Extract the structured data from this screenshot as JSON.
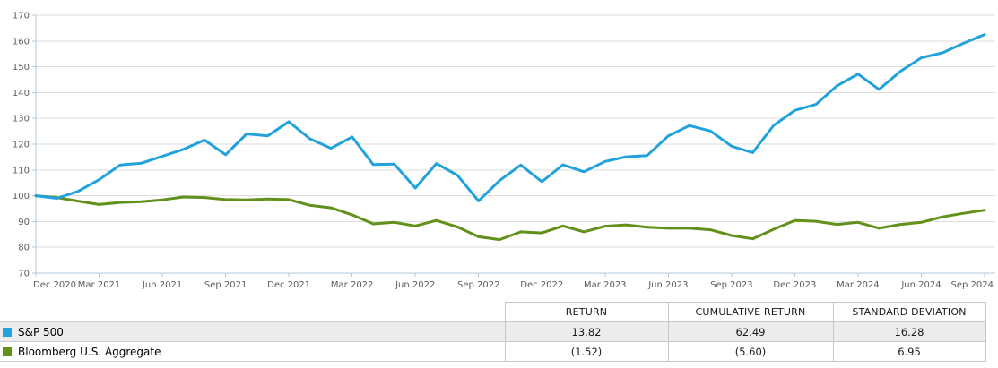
{
  "colors": {
    "grid": "#dddddd",
    "axis": "#b0c9dd",
    "table_border": "#c6c6c6",
    "alt_row_bg": "#ececec",
    "tick_text": "#5c5c5c"
  },
  "chart_data": {
    "type": "line",
    "title": "",
    "xlabel": "",
    "ylabel": "",
    "ylim": [
      70,
      170
    ],
    "y_ticks": [
      70,
      80,
      90,
      100,
      110,
      120,
      130,
      140,
      150,
      160,
      170
    ],
    "grid": "horizontal only",
    "legend_position": "table below chart",
    "x_tick_labels": [
      "Dec 2020",
      "Mar 2021",
      "Jun 2021",
      "Sep 2021",
      "Dec 2021",
      "Mar 2022",
      "Jun 2022",
      "Sep 2022",
      "Dec 2022",
      "Mar 2023",
      "Jun 2023",
      "Sep 2023",
      "Dec 2023",
      "Mar 2024",
      "Jun 2024",
      "Sep 2024"
    ],
    "x": [
      "Dec 2020",
      "Jan 2021",
      "Feb 2021",
      "Mar 2021",
      "Apr 2021",
      "May 2021",
      "Jun 2021",
      "Jul 2021",
      "Aug 2021",
      "Sep 2021",
      "Oct 2021",
      "Nov 2021",
      "Dec 2021",
      "Jan 2022",
      "Feb 2022",
      "Mar 2022",
      "Apr 2022",
      "May 2022",
      "Jun 2022",
      "Jul 2022",
      "Aug 2022",
      "Sep 2022",
      "Oct 2022",
      "Nov 2022",
      "Dec 2022",
      "Jan 2023",
      "Feb 2023",
      "Mar 2023",
      "Apr 2023",
      "May 2023",
      "Jun 2023",
      "Jul 2023",
      "Aug 2023",
      "Sep 2023",
      "Oct 2023",
      "Nov 2023",
      "Dec 2023",
      "Jan 2024",
      "Feb 2024",
      "Mar 2024",
      "Apr 2024",
      "May 2024",
      "Jun 2024",
      "Jul 2024",
      "Aug 2024",
      "Sep 2024"
    ],
    "series": [
      {
        "name": "S&P 500",
        "color": "#22a2dc",
        "values": [
          100,
          99,
          101.7,
          106.2,
          111.9,
          112.6,
          115.3,
          118,
          121.6,
          115.9,
          124,
          123.2,
          128.7,
          122.1,
          118.4,
          122.8,
          112.1,
          112.3,
          103,
          112.5,
          107.9,
          98,
          105.9,
          111.9,
          105.4,
          112,
          109.3,
          113.3,
          115.1,
          115.6,
          123.2,
          127.2,
          125.1,
          119.2,
          116.7,
          127.3,
          133.1,
          135.4,
          142.6,
          147.2,
          141.2,
          148.2,
          153.5,
          155.4,
          159.1,
          162.5
        ]
      },
      {
        "name": "Bloomberg U.S. Aggregate",
        "color": "#61901b",
        "values": [
          100,
          99.3,
          97.9,
          96.6,
          97.4,
          97.7,
          98.4,
          99.5,
          99.3,
          98.5,
          98.4,
          98.7,
          98.5,
          96.3,
          95.3,
          92.6,
          89.1,
          89.7,
          88.3,
          90.4,
          87.9,
          84.1,
          83,
          86,
          85.6,
          88.3,
          86,
          88.2,
          88.7,
          87.8,
          87.4,
          87.4,
          86.8,
          84.6,
          83.3,
          87,
          90.4,
          90.1,
          88.9,
          89.7,
          87.4,
          88.9,
          89.7,
          91.8,
          93.2,
          94.4
        ]
      }
    ]
  },
  "table": {
    "headers": [
      "RETURN",
      "CUMULATIVE RETURN",
      "STANDARD DEVIATION"
    ],
    "rows": [
      {
        "name": "S&P 500",
        "return": "13.82",
        "cumulative_return": "62.49",
        "standard_deviation": "16.28"
      },
      {
        "name": "Bloomberg U.S. Aggregate",
        "return": "(1.52)",
        "cumulative_return": "(5.60)",
        "standard_deviation": "6.95"
      }
    ]
  }
}
